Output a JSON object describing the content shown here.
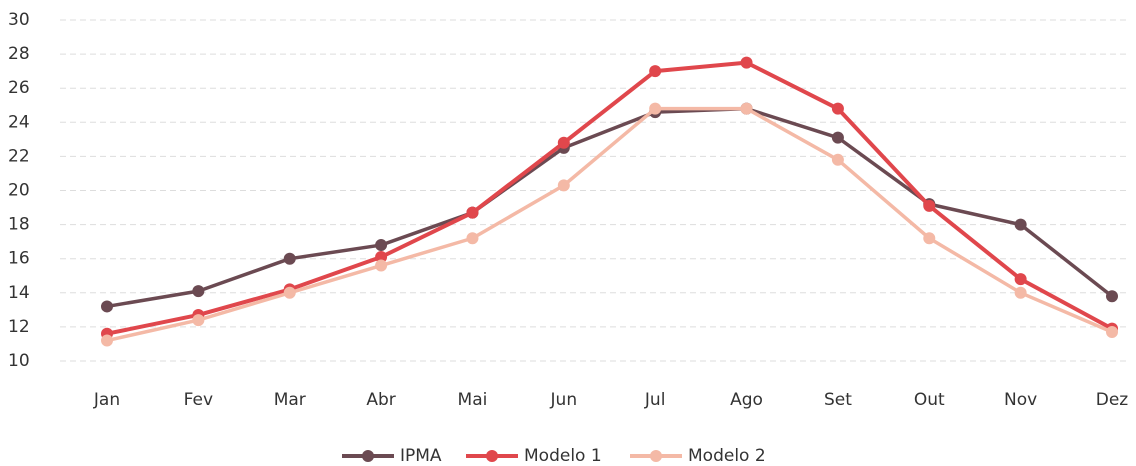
{
  "chart_data": {
    "type": "line",
    "categories": [
      "Jan",
      "Fev",
      "Mar",
      "Abr",
      "Mai",
      "Jun",
      "Jul",
      "Ago",
      "Set",
      "Out",
      "Nov",
      "Dez"
    ],
    "series": [
      {
        "name": "IPMA",
        "color": "#6b4a52",
        "values": [
          13.2,
          14.1,
          16.0,
          16.8,
          18.7,
          22.5,
          24.6,
          24.8,
          23.1,
          19.2,
          18.0,
          13.8
        ]
      },
      {
        "name": "Modelo 1",
        "color": "#e0474c",
        "values": [
          11.6,
          12.7,
          14.2,
          16.1,
          18.7,
          22.8,
          27.0,
          27.5,
          24.8,
          19.1,
          14.8,
          11.9
        ]
      },
      {
        "name": "Modelo 2",
        "color": "#f4b9a6",
        "values": [
          11.2,
          12.4,
          14.0,
          15.6,
          17.2,
          20.3,
          24.8,
          24.8,
          21.8,
          17.2,
          14.0,
          11.7
        ]
      }
    ],
    "ylim": [
      10,
      30
    ],
    "yticks": [
      10,
      12,
      14,
      16,
      18,
      20,
      22,
      24,
      26,
      28,
      30
    ],
    "grid": true,
    "legend": "bottom"
  }
}
